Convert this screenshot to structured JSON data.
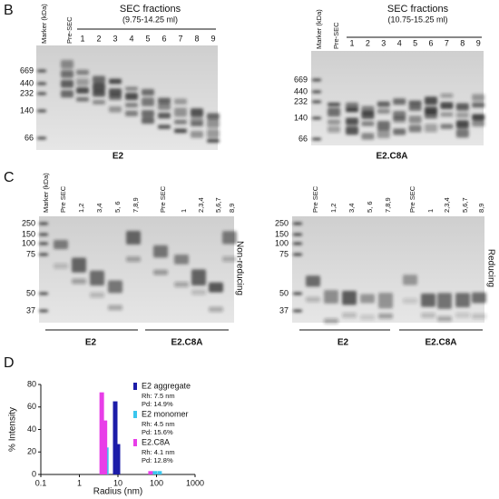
{
  "panels": {
    "b": {
      "label": "B",
      "left": {
        "header": "SEC fractions",
        "range": "(9.75-14.25 ml)",
        "marker": "Marker (kDa)",
        "pre": "Pre-SEC",
        "lanes": [
          "1",
          "2",
          "3",
          "4",
          "5",
          "6",
          "7",
          "8",
          "9"
        ],
        "mw": [
          "669",
          "440",
          "232",
          "140",
          "66"
        ],
        "name": "E2"
      },
      "right": {
        "header": "SEC fractions",
        "range": "(10.75-15.25 ml)",
        "marker": "Marker (kDa)",
        "pre": "Pre-SEC",
        "lanes": [
          "1",
          "2",
          "3",
          "4",
          "5",
          "6",
          "7",
          "8",
          "9"
        ],
        "mw": [
          "669",
          "440",
          "232",
          "140",
          "66"
        ],
        "name": "E2.C8A"
      }
    },
    "c": {
      "label": "C",
      "left": {
        "lanes": [
          "Marker (kDa)",
          "Pre SEC",
          "1,2",
          "3,4",
          "5, 6",
          "7,8,9",
          "Pre SEC",
          "1",
          "2,3,4",
          "5,6,7",
          "8,9"
        ],
        "mw": [
          "250",
          "150",
          "100",
          "75",
          "50",
          "37"
        ],
        "condition": "Non-reducing",
        "groups": [
          "E2",
          "E2.C8A"
        ]
      },
      "right": {
        "lanes": [
          "Pre SEC",
          "1,2",
          "3,4",
          "5, 6",
          "7,8,9",
          "Pre SEC",
          "1",
          "2,3,4",
          "5,6,7",
          "8,9"
        ],
        "mw": [
          "250",
          "150",
          "100",
          "75",
          "50",
          "37"
        ],
        "condition": "Reducing",
        "groups": [
          "E2",
          "E2.C8A"
        ]
      }
    },
    "d": {
      "label": "D"
    }
  },
  "chart_data": {
    "type": "bar",
    "x_label": "Radius (nm)",
    "y_label": "% Intensity",
    "xscale": "log",
    "xlim": [
      0.1,
      1000
    ],
    "xticks": [
      0.1,
      1,
      10,
      100,
      1000
    ],
    "ylim": [
      0,
      80
    ],
    "yticks": [
      0,
      20,
      40,
      60,
      80
    ],
    "series": [
      {
        "name": "E2 aggregate",
        "rh": "Rh: 7.5 nm",
        "pd": "Pd: 14.9%",
        "color": "#1c1ca8",
        "x": [
          8.5,
          10
        ],
        "values": [
          65,
          27
        ]
      },
      {
        "name": "E2 monomer",
        "rh": "Rh: 4.5 nm",
        "pd": "Pd: 15.6%",
        "color": "#3ac6ee",
        "x": [
          4.3,
          5.0,
          90,
          120
        ],
        "values": [
          45,
          24,
          3,
          3
        ]
      },
      {
        "name": "E2.C8A",
        "rh": "Rh: 4.1 nm",
        "pd": "Pd: 12.8%",
        "color": "#e83ee8",
        "x": [
          3.8,
          4.6,
          70
        ],
        "values": [
          73,
          48,
          3
        ]
      }
    ]
  }
}
